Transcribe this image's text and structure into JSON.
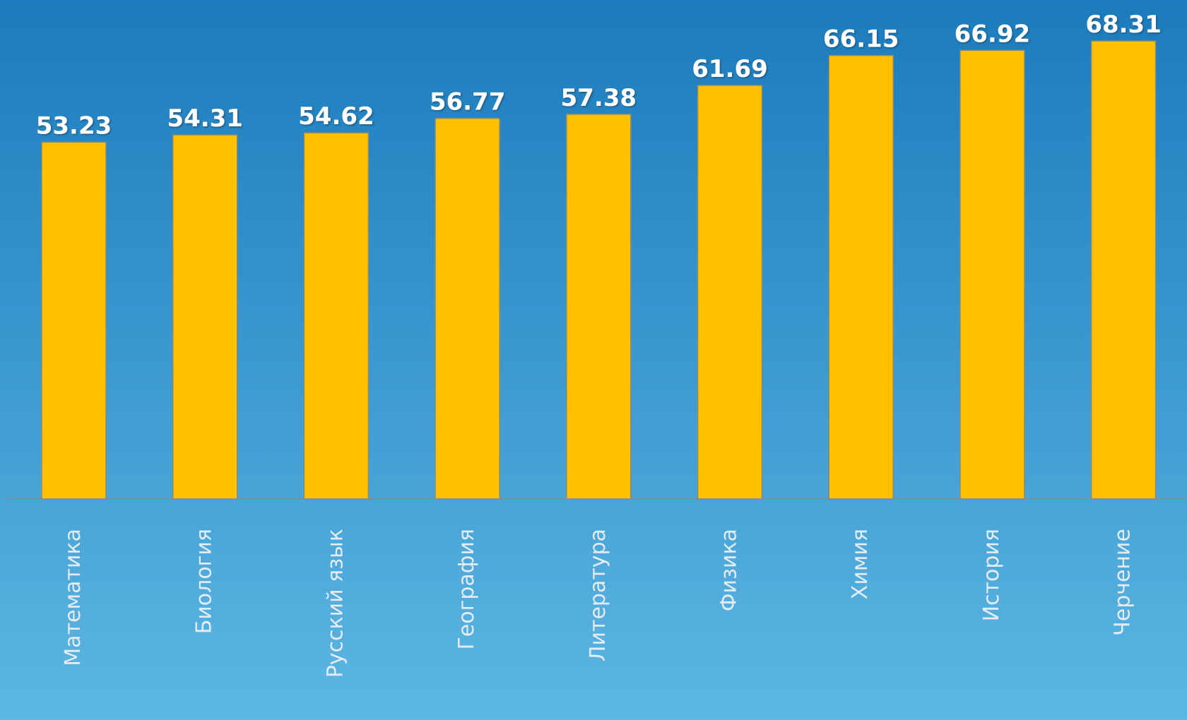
{
  "chart_data": {
    "type": "bar",
    "categories": [
      "Математика",
      "Биология",
      "Русский язык",
      "География",
      "Литература",
      "Физика",
      "Химия",
      "История",
      "Черчение"
    ],
    "values": [
      53.23,
      54.31,
      54.62,
      56.77,
      57.38,
      61.69,
      66.15,
      66.92,
      68.31
    ],
    "color": "#ffc000",
    "ylim": [
      0,
      74
    ]
  }
}
